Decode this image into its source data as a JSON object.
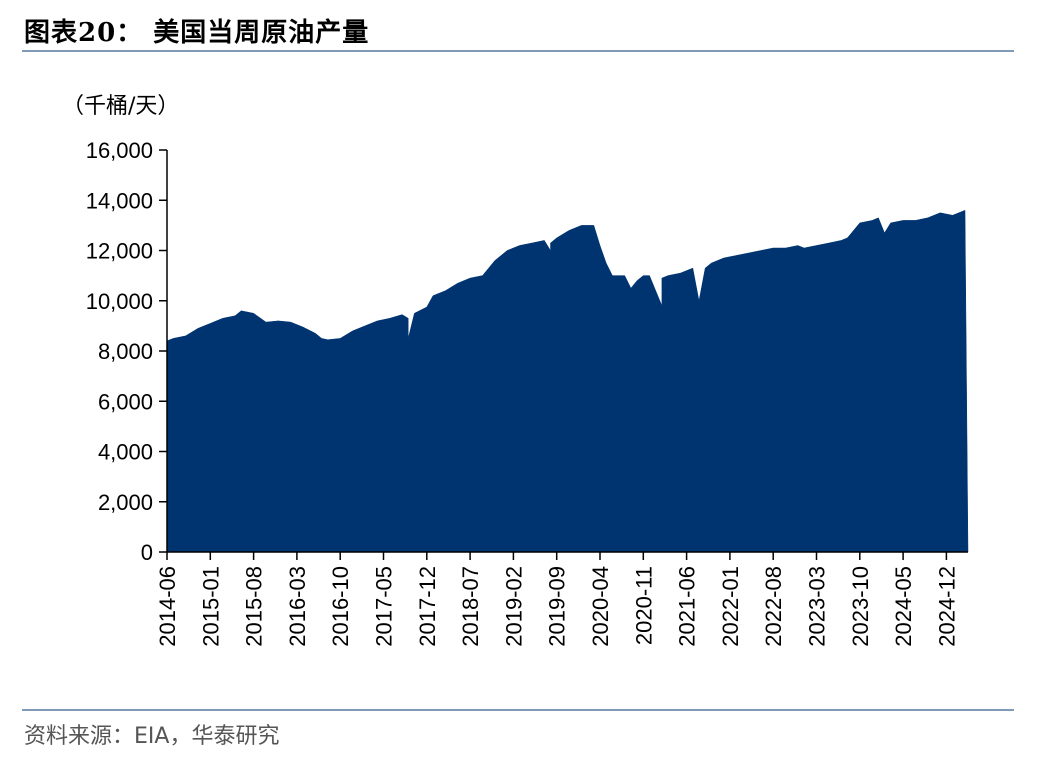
{
  "header": {
    "title": "图表20： 美国当周原油产量"
  },
  "unit_label": "（千桶/天）",
  "source": "资料来源：EIA，华泰研究",
  "colors": {
    "area": "#003471",
    "rule": "#7f9bb8",
    "axis": "#000000"
  },
  "chart_data": {
    "type": "area",
    "title": "美国当周原油产量",
    "ylabel": "（千桶/天）",
    "xlabel": "",
    "ylim": [
      0,
      16000
    ],
    "yticks": [
      "0",
      "2,000",
      "4,000",
      "6,000",
      "8,000",
      "10,000",
      "12,000",
      "14,000",
      "16,000"
    ],
    "xticks": [
      "2014-06",
      "2015-01",
      "2015-08",
      "2016-03",
      "2016-10",
      "2017-05",
      "2017-12",
      "2018-07",
      "2019-02",
      "2019-09",
      "2020-04",
      "2020-11",
      "2021-06",
      "2022-01",
      "2022-08",
      "2023-03",
      "2023-10",
      "2024-05",
      "2024-12"
    ],
    "grid": false,
    "series": [
      {
        "x": [
          "2014-06",
          "2014-07",
          "2014-09",
          "2014-11",
          "2015-01",
          "2015-03",
          "2015-05",
          "2015-06",
          "2015-08",
          "2015-10",
          "2015-12",
          "2016-02",
          "2016-04",
          "2016-06",
          "2016-07",
          "2016-08",
          "2016-10",
          "2016-12",
          "2017-02",
          "2017-04",
          "2017-06",
          "2017-08",
          "2017-09",
          "2017-09",
          "2017-10",
          "2017-12",
          "2018-01",
          "2018-03",
          "2018-05",
          "2018-07",
          "2018-09",
          "2018-11",
          "2019-01",
          "2019-03",
          "2019-05",
          "2019-07",
          "2019-08",
          "2019-08",
          "2019-09",
          "2019-11",
          "2020-01",
          "2020-03",
          "2020-04",
          "2020-05",
          "2020-06",
          "2020-08",
          "2020-09",
          "2020-10",
          "2020-11",
          "2020-12",
          "2021-02",
          "2021-02",
          "2021-03",
          "2021-05",
          "2021-07",
          "2021-08",
          "2021-09",
          "2021-10",
          "2021-12",
          "2022-02",
          "2022-04",
          "2022-06",
          "2022-08",
          "2022-10",
          "2022-12",
          "2023-01",
          "2023-03",
          "2023-05",
          "2023-07",
          "2023-08",
          "2023-10",
          "2023-12",
          "2024-01",
          "2024-02",
          "2024-03",
          "2024-05",
          "2024-07",
          "2024-09",
          "2024-11",
          "2025-01",
          "2025-03"
        ],
        "values": [
          8400,
          8500,
          8600,
          8900,
          9100,
          9300,
          9400,
          9600,
          9500,
          9150,
          9200,
          9150,
          8950,
          8700,
          8500,
          8450,
          8500,
          8800,
          9000,
          9200,
          9300,
          9450,
          9300,
          8500,
          9500,
          9750,
          10200,
          10400,
          10700,
          10900,
          11000,
          11600,
          12000,
          12200,
          12300,
          12400,
          12000,
          12300,
          12500,
          12800,
          13000,
          13000,
          12200,
          11500,
          11000,
          11000,
          10500,
          10800,
          11000,
          11000,
          9800,
          10900,
          11000,
          11100,
          11300,
          10000,
          11300,
          11500,
          11700,
          11800,
          11900,
          12000,
          12100,
          12100,
          12200,
          12100,
          12200,
          12300,
          12400,
          12500,
          13100,
          13200,
          13300,
          12700,
          13100,
          13200,
          13200,
          13300,
          13500,
          13400,
          13600
        ]
      }
    ]
  }
}
